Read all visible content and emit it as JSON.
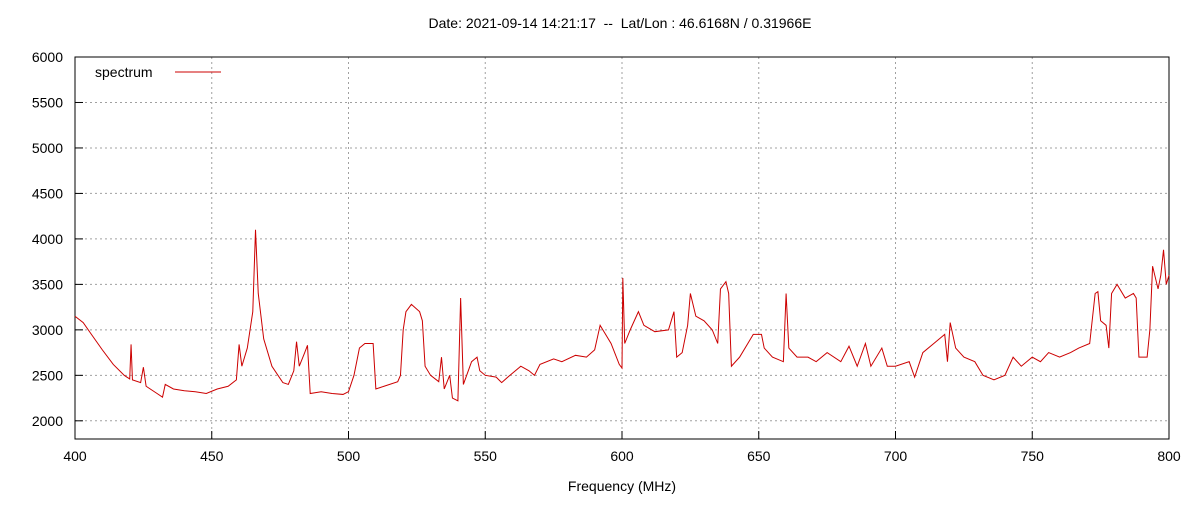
{
  "chart_data": {
    "type": "line",
    "title": "Date: 2021-09-14 14:21:17  --  Lat/Lon : 46.6168N / 0.31966E",
    "x_label": "Frequency (MHz)",
    "xlim": [
      400,
      800
    ],
    "ylim": [
      1800,
      6000
    ],
    "xticks": [
      400,
      450,
      500,
      550,
      600,
      650,
      700,
      750,
      800
    ],
    "yticks": [
      2000,
      2500,
      3000,
      3500,
      4000,
      4500,
      5000,
      5500,
      6000
    ],
    "grid": true,
    "legend": "top-left",
    "x": [
      400,
      403,
      406,
      410,
      414,
      418,
      420,
      420.5,
      421,
      424,
      425,
      426,
      430,
      432,
      433,
      436,
      440,
      444,
      448,
      452,
      456,
      459,
      460,
      461,
      463,
      465,
      466,
      467,
      469,
      472,
      476,
      478,
      480,
      481,
      482,
      484,
      485,
      486,
      490,
      494,
      498,
      500,
      502,
      504,
      506,
      509,
      510,
      513,
      518,
      519,
      520,
      521,
      523,
      526,
      527,
      528,
      530,
      533,
      534,
      535,
      537,
      538,
      540,
      541,
      542,
      545,
      547,
      548,
      550,
      554,
      556,
      559,
      563,
      566,
      568,
      570,
      575,
      578,
      583,
      587,
      590,
      592,
      594,
      596,
      599,
      600,
      600.3,
      601,
      603,
      606,
      608,
      612,
      617,
      619,
      620,
      622,
      624,
      625,
      627,
      630,
      633,
      635,
      636,
      638,
      639,
      640,
      643,
      646,
      648,
      651,
      652,
      655,
      659,
      660,
      661,
      664,
      668,
      671,
      675,
      680,
      683,
      686,
      689,
      691,
      695,
      697,
      700,
      705,
      707,
      710,
      714,
      718,
      719,
      720,
      722,
      725,
      729,
      732,
      736,
      740,
      743,
      746,
      750,
      753,
      756,
      760,
      764,
      767,
      771,
      773,
      774,
      775,
      777,
      778,
      779,
      781,
      784,
      787,
      788,
      789,
      792,
      793,
      794,
      796,
      797,
      798,
      799,
      800
    ],
    "series": [
      {
        "name": "spectrum",
        "color": "#cc0000",
        "values": [
          3150,
          3080,
          2950,
          2780,
          2620,
          2500,
          2460,
          2840,
          2450,
          2420,
          2590,
          2380,
          2300,
          2260,
          2400,
          2350,
          2330,
          2320,
          2300,
          2350,
          2380,
          2450,
          2840,
          2600,
          2800,
          3200,
          4100,
          3400,
          2900,
          2600,
          2420,
          2400,
          2550,
          2870,
          2600,
          2750,
          2830,
          2300,
          2320,
          2300,
          2290,
          2320,
          2500,
          2800,
          2850,
          2850,
          2350,
          2380,
          2430,
          2500,
          3000,
          3200,
          3280,
          3200,
          3100,
          2600,
          2500,
          2430,
          2700,
          2350,
          2500,
          2250,
          2220,
          3350,
          2400,
          2650,
          2700,
          2550,
          2500,
          2480,
          2420,
          2500,
          2600,
          2550,
          2500,
          2620,
          2680,
          2650,
          2720,
          2700,
          2780,
          3050,
          2950,
          2850,
          2620,
          2580,
          3570,
          2850,
          3000,
          3200,
          3050,
          2980,
          3000,
          3200,
          2700,
          2750,
          3050,
          3400,
          3150,
          3100,
          3000,
          2850,
          3450,
          3530,
          3400,
          2600,
          2700,
          2850,
          2950,
          2950,
          2800,
          2700,
          2650,
          3400,
          2800,
          2700,
          2700,
          2650,
          2750,
          2650,
          2820,
          2600,
          2850,
          2600,
          2800,
          2600,
          2600,
          2650,
          2480,
          2750,
          2850,
          2950,
          2650,
          3080,
          2800,
          2700,
          2650,
          2500,
          2450,
          2500,
          2700,
          2600,
          2700,
          2650,
          2750,
          2700,
          2750,
          2800,
          2850,
          3400,
          3420,
          3100,
          3050,
          2800,
          3400,
          3500,
          3350,
          3400,
          3350,
          2700,
          2700,
          3000,
          3700,
          3450,
          3600,
          3880,
          3500,
          3600
        ]
      }
    ]
  }
}
